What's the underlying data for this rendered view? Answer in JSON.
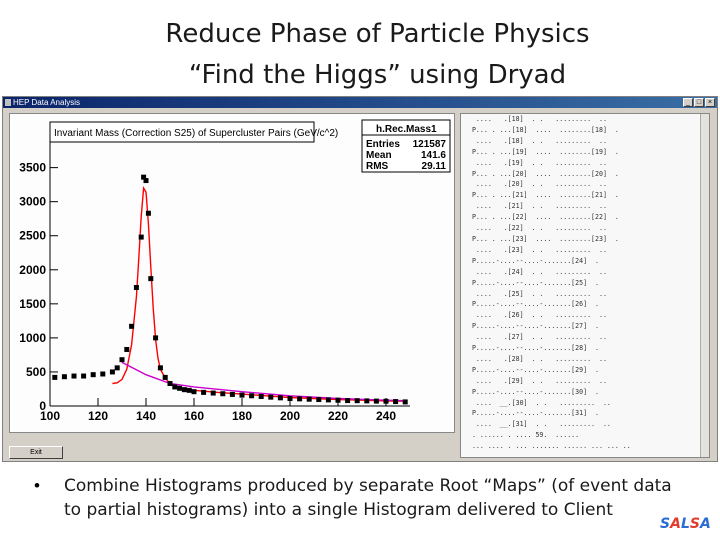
{
  "slide": {
    "title_line1": "Reduce Phase of Particle Physics",
    "title_line2": "“Find the Higgs” using Dryad",
    "bullet": "Combine Histograms produced by separate Root “Maps” (of event data to partial histograms) into a single Histogram delivered to Client",
    "bullet_line1": "Combine Histograms produced by separate Root “Maps” (of event data",
    "bullet_line2": "to partial histograms) into a single Histogram delivered to Client",
    "logo": "SALSA"
  },
  "window": {
    "title": "HEP Data Analysis",
    "exit_label": "Exit",
    "icons": [
      "minimize-icon",
      "maximize-icon",
      "close-icon"
    ]
  },
  "histogram": {
    "title": "Invariant Mass (Correction S25) of Supercluster Pairs (GeV/c^2)",
    "stats_name": "h.Rec.Mass1",
    "stats": [
      {
        "label": "Entries",
        "value": "121587"
      },
      {
        "label": "Mean",
        "value": "141.6"
      },
      {
        "label": "RMS",
        "value": "29.11"
      }
    ]
  },
  "chart_data": {
    "type": "scatter",
    "title": "Invariant Mass (Correction S25) of Supercluster Pairs (GeV/c^2)",
    "xlim": [
      100,
      250
    ],
    "ylim": [
      0,
      3700
    ],
    "x_ticks": [
      100,
      120,
      140,
      160,
      180,
      200,
      220,
      240
    ],
    "y_ticks": [
      0,
      500,
      1000,
      1500,
      2000,
      2500,
      3000,
      3500
    ],
    "series": [
      {
        "x": [
          102,
          106,
          110,
          114,
          118,
          122,
          126,
          128,
          130,
          132,
          134,
          136,
          138,
          139,
          140,
          141,
          142,
          144,
          146,
          148,
          150,
          152,
          154,
          156,
          158,
          160,
          164,
          168,
          172,
          176,
          180,
          184,
          188,
          192,
          196,
          200,
          204,
          208,
          212,
          216,
          220,
          224,
          228,
          232,
          236,
          240,
          244,
          248
        ],
        "y": [
          420,
          430,
          440,
          440,
          460,
          470,
          500,
          560,
          680,
          830,
          1170,
          1740,
          2480,
          3360,
          3310,
          2830,
          1870,
          1000,
          560,
          420,
          330,
          280,
          260,
          240,
          230,
          210,
          200,
          190,
          180,
          170,
          160,
          150,
          140,
          130,
          120,
          110,
          105,
          100,
          95,
          90,
          85,
          80,
          78,
          75,
          72,
          70,
          65,
          60
        ]
      }
    ],
    "fit_curves": [
      {
        "color": "#ff0000",
        "x": [
          126,
          128,
          130,
          132,
          134,
          136,
          137,
          138,
          139,
          140,
          141,
          142,
          143,
          144,
          145,
          146,
          148,
          150,
          152,
          154,
          156,
          160,
          170,
          180,
          190,
          200,
          210,
          220,
          230,
          240,
          248
        ],
        "y": [
          330,
          340,
          390,
          540,
          900,
          1600,
          2170,
          2780,
          3200,
          3140,
          2680,
          2040,
          1440,
          980,
          700,
          540,
          410,
          330,
          290,
          270,
          250,
          230,
          200,
          175,
          150,
          125,
          110,
          95,
          85,
          75,
          70
        ]
      },
      {
        "color": "#cc00cc",
        "x": [
          130,
          140,
          150,
          160,
          180,
          200,
          220,
          240,
          248
        ],
        "y": [
          640,
          460,
          330,
          280,
          210,
          150,
          110,
          85,
          78
        ]
      }
    ]
  },
  "console_lines": [
    "   ....   .[18]  . .   .........  ..",
    "  P... . ...[18]  ....  ........[18]  .",
    "   ....   .[18]  . .   .........  ..",
    "  P... . ...[19]  ....  ........[19]  .",
    "   ....   .[19]  . .   .........  ..",
    "  P... . ...[20]  ....  ........[20]  .",
    "   ....   .[20]  . .   .........  ..",
    "  P... . ...[21]  ....  ........[21]  .",
    "   ....   .[21]  . .   .........  ..",
    "  P... . ...[22]  ....  ........[22]  .",
    "   ....   .[22]  . .   .........  ..",
    "  P... . ...[23]  ....  ........[23]  .",
    "   ....   .[23]  . .   .........  ..",
    "  P.....-....--....-.......[24]  .",
    "   ....   .[24]  . .   .........  ..",
    "  P.....-....--....-.......[25]  .",
    "   ....   .[25]  . .   .........  ..",
    "  P.....-....--....-.......[26]  .",
    "   ....   .[26]  . .   .........  ..",
    "  P.....-....--....-.......[27]  .",
    "   ....   .[27]  . .   .........  ..",
    "  P.....-....--....-.......[28]  .",
    "   ....   .[28]  . .   .........  ..",
    "  P.....-....--....-.......[29]  .",
    "   ....   .[29]  . .   .........  ..",
    "  P.....-....--....-.......[30]  .",
    "   ....  __.[30]  . .   .........  ..",
    "  P.....-....--....-.......[31]  .",
    "   ....  __.[31]  . .   .........  ..",
    "  . ...... . .... 59.  ......",
    "  ... .... . ... ....... ...... ... ... ..",
    "  ..... ....",
    "  ..... .. ....... ... ... 3.5.",
    "  ..... .. . ... .... ....  ... ...",
    "  ...... .... ....... .......  ..",
    "  ...... .. .... . .......... ... ...."
  ]
}
